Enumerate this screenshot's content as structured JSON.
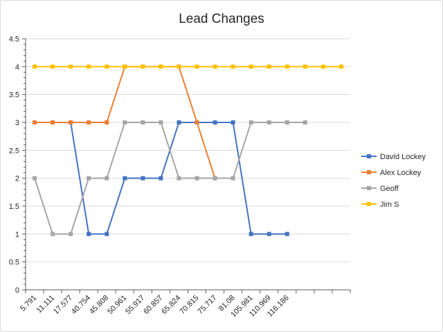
{
  "chart_data": {
    "type": "line",
    "title": "Lead Changes",
    "xlabel": "",
    "ylabel": "",
    "x": [
      "5.791",
      "11.111",
      "17.577",
      "40.754",
      "45.808",
      "50.961",
      "55.917",
      "60.857",
      "65.824",
      "70.815",
      "75.717",
      "81.08",
      "105.981",
      "110.969",
      "116.186",
      "",
      "",
      ""
    ],
    "ylim": [
      0,
      4.5
    ],
    "yticks": [
      "0",
      "0.5",
      "1",
      "1.5",
      "2",
      "2.5",
      "3",
      "3.5",
      "4",
      "4.5"
    ],
    "grid": true,
    "legend_position": "right",
    "series": [
      {
        "name": "David Lockey",
        "color": "#4472C4",
        "values": [
          null,
          null,
          3,
          1,
          1,
          2,
          2,
          2,
          3,
          3,
          3,
          3,
          1,
          1,
          1,
          null,
          null,
          null
        ]
      },
      {
        "name": "Alex Lockey",
        "color": "#ED7D31",
        "values": [
          3,
          3,
          3,
          3,
          3,
          4,
          4,
          4,
          4,
          3,
          2,
          null,
          null,
          null,
          null,
          null,
          null,
          null
        ]
      },
      {
        "name": "Geoff",
        "color": "#A5A5A5",
        "values": [
          2,
          1,
          1,
          2,
          2,
          3,
          3,
          3,
          2,
          2,
          2,
          2,
          3,
          3,
          3,
          3,
          null,
          null
        ]
      },
      {
        "name": "Jim S",
        "color": "#FFC000",
        "values": [
          4,
          4,
          4,
          4,
          4,
          4,
          4,
          4,
          4,
          4,
          4,
          4,
          4,
          4,
          4,
          4,
          4,
          4
        ]
      }
    ]
  }
}
